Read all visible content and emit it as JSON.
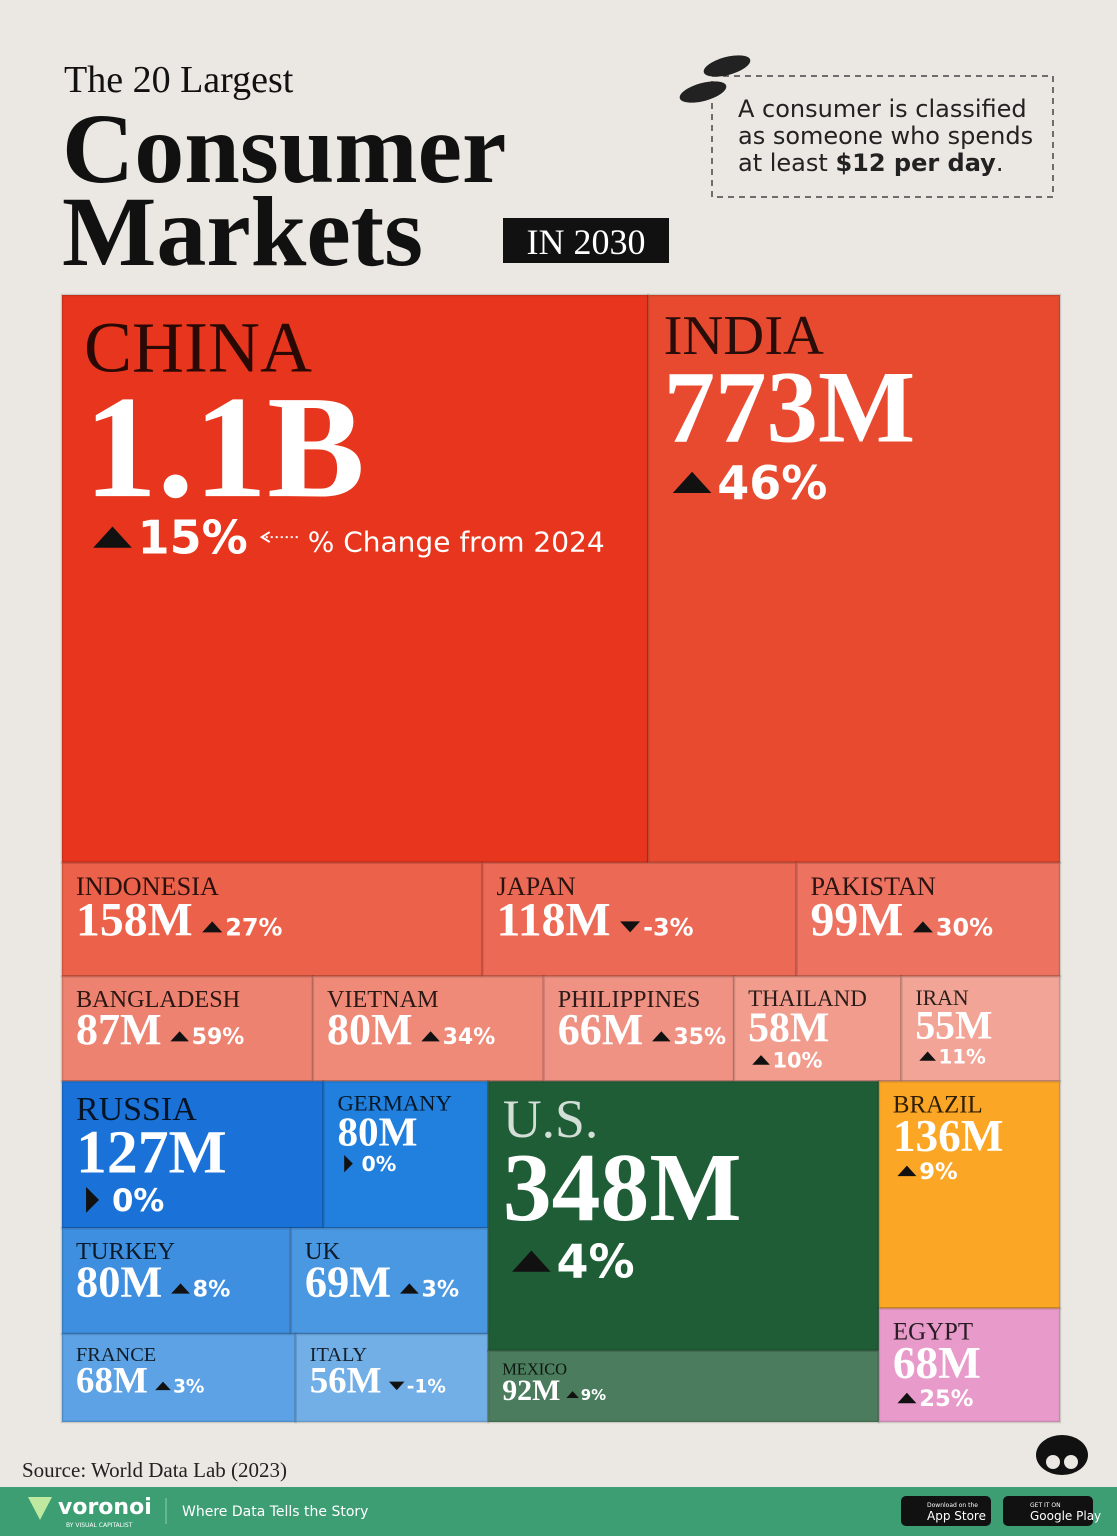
{
  "chart_data": {
    "type": "treemap",
    "pretitle": "The 20 Largest",
    "title_lines": [
      "Consumer",
      "Markets"
    ],
    "title_suffix": "IN 2030",
    "note_lines": [
      "A consumer is classified",
      "as someone who spends"
    ],
    "note_last": [
      "at least ",
      "$12 per day",
      "."
    ],
    "annotation": "% Change from 2024",
    "categories": [
      "CHINA",
      "INDIA",
      "INDONESIA",
      "JAPAN",
      "PAKISTAN",
      "BANGLADESH",
      "VIETNAM",
      "PHILIPPINES",
      "THAILAND",
      "IRAN",
      "RUSSIA",
      "GERMANY",
      "TURKEY",
      "UK",
      "FRANCE",
      "ITALY",
      "U.S.",
      "MEXICO",
      "BRAZIL",
      "EGYPT"
    ],
    "values": [
      1100,
      773,
      158,
      118,
      99,
      87,
      80,
      66,
      58,
      55,
      127,
      80,
      80,
      69,
      68,
      56,
      348,
      92,
      136,
      68
    ],
    "value_labels": [
      "1.1B",
      "773M",
      "158M",
      "118M",
      "99M",
      "87M",
      "80M",
      "66M",
      "58M",
      "55M",
      "127M",
      "80M",
      "80M",
      "69M",
      "68M",
      "56M",
      "348M",
      "92M",
      "136M",
      "68M"
    ],
    "changes": [
      15,
      46,
      27,
      -3,
      30,
      59,
      34,
      35,
      10,
      11,
      0,
      0,
      8,
      3,
      3,
      -1,
      4,
      9,
      9,
      25
    ],
    "change_labels": [
      "15%",
      "46%",
      "27%",
      "-3%",
      "30%",
      "59%",
      "34%",
      "35%",
      "10%",
      "11%",
      "0%",
      "0%",
      "8%",
      "3%",
      "3%",
      "-1%",
      "4%",
      "9%",
      "9%",
      "25%"
    ],
    "colors": [
      "#e8361e",
      "#e84a30",
      "#ec614a",
      "#ec6a55",
      "#ed7260",
      "#ee8270",
      "#ef8a79",
      "#f09283",
      "#f19c8d",
      "#f2a597",
      "#1a72d8",
      "#2180de",
      "#3e8fe0",
      "#4a97e2",
      "#5ca2e4",
      "#72afe6",
      "#1e5d36",
      "#4b7c5d",
      "#fca625",
      "#e89bca"
    ]
  },
  "source": "Source: World Data Lab (2023)",
  "footer": {
    "brand": "voronoi",
    "brand_sub": "BY VISUAL CAPITALIST",
    "tagline": "Where Data Tells the Story",
    "app_small": "Download on the",
    "app": "App Store",
    "play_small": "GET IT ON",
    "play": "Google Play"
  }
}
